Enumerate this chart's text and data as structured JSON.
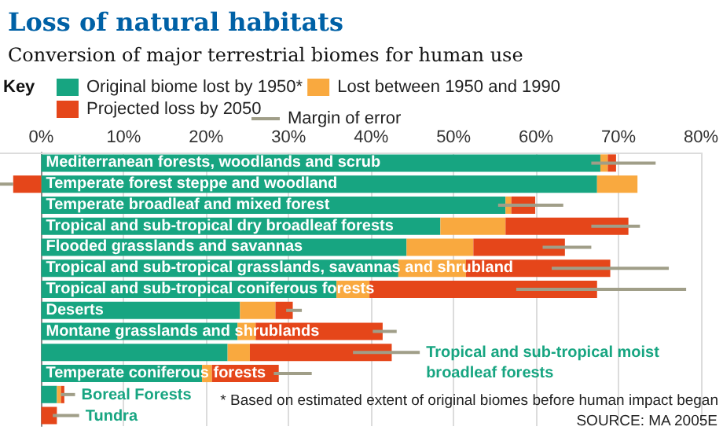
{
  "chart_data": {
    "type": "bar",
    "orientation": "horizontal",
    "stacked": true,
    "title": "Loss of natural habitats",
    "subtitle": "Conversion of major terrestrial biomes for human use",
    "legend_title": "Key",
    "legend": "top",
    "categories": [
      "Mediterranean forests, woodlands and scrub",
      "Temperate forest steppe and woodland",
      "Temperate broadleaf and mixed forest",
      "Tropical and sub-tropical dry broadleaf forests",
      "Flooded grasslands and savannas",
      "Tropical and sub-tropical grasslands, savannas and shrubland",
      "Tropical and sub-tropical coniferous forests",
      "Deserts",
      "Montane grasslands and shrublands",
      "Tropical and sub-tropical moist broadleaf forests",
      "Temperate coniferous forests",
      "Boreal Forests",
      "Tundra"
    ],
    "series": [
      {
        "name": "Original biome lost by 1950*",
        "color": "#17a581",
        "values": [
          67.8,
          67.4,
          56.3,
          48.4,
          44.3,
          43.3,
          35.8,
          24.1,
          23.8,
          22.6,
          19.5,
          1.9,
          0
        ]
      },
      {
        "name": "Lost between 1950 and 1990",
        "color": "#f9a93f",
        "values": [
          0.9,
          4.9,
          0.7,
          7.9,
          8.1,
          8.2,
          4.0,
          4.3,
          2.2,
          2.7,
          1.2,
          0.5,
          0
        ]
      },
      {
        "name": "Projected loss by 2050",
        "color": "#e5461a",
        "values": [
          1.0,
          -3.4,
          2.9,
          14.9,
          11.1,
          17.5,
          27.6,
          2.1,
          15.4,
          17.2,
          8.1,
          0.4,
          1.9
        ],
        "errors": [
          [
            66.7,
            74.5
          ],
          [
            -5,
            -3.4
          ],
          [
            55.4,
            63.3
          ],
          [
            66.7,
            72.6
          ],
          [
            60.8,
            66.7
          ],
          [
            61.9,
            76.1
          ],
          [
            57.6,
            78.2
          ],
          [
            29.7,
            31.6
          ],
          [
            40.2,
            43.1
          ],
          [
            37.8,
            45.9
          ],
          [
            28.2,
            32.8
          ],
          [
            2.4,
            4.1
          ],
          [
            1.4,
            4.6
          ]
        ]
      }
    ],
    "xlim": [
      -5,
      80
    ],
    "xticks": [
      {
        "value": 0,
        "label": "0%"
      },
      {
        "value": 10,
        "label": "10%"
      },
      {
        "value": 20,
        "label": "20%"
      },
      {
        "value": 30,
        "label": "30%"
      },
      {
        "value": 40,
        "label": "40%"
      },
      {
        "value": 50,
        "label": "50%"
      },
      {
        "value": 60,
        "label": "60%"
      },
      {
        "value": 70,
        "label": "70%"
      },
      {
        "value": 80,
        "label": "80%"
      }
    ],
    "grid": "x",
    "annotations": [
      "Margin of error",
      "* Based on estimated extent of original biomes before human impact began",
      "SOURCE: MA 2005E"
    ]
  }
}
